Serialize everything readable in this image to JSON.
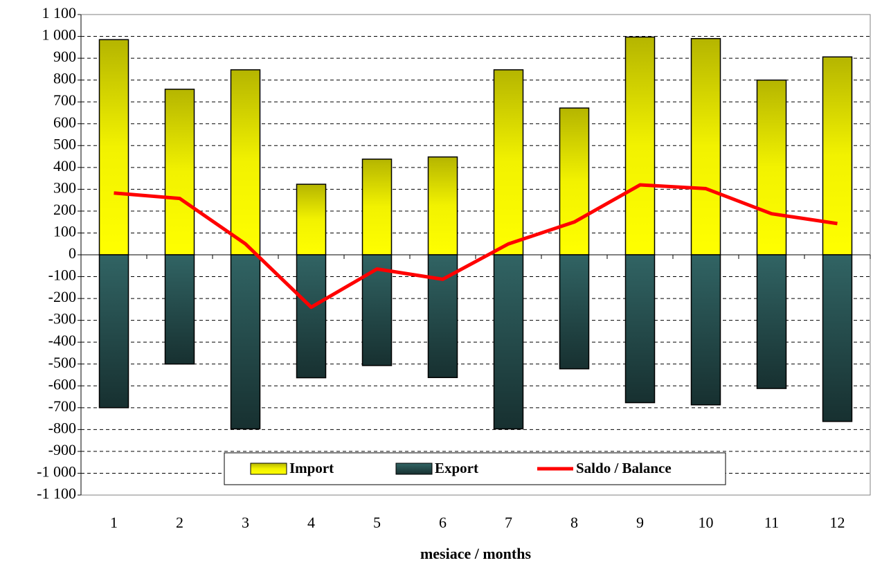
{
  "chart_data": {
    "type": "bar_line",
    "x_label": "mesiace / months",
    "categories": [
      "1",
      "2",
      "3",
      "4",
      "5",
      "6",
      "7",
      "8",
      "9",
      "10",
      "11",
      "12"
    ],
    "series": [
      {
        "name": "Import",
        "type": "bar",
        "color": "#e6e600",
        "values": [
          985,
          758,
          847,
          323,
          438,
          448,
          847,
          672,
          997,
          990,
          800,
          906
        ]
      },
      {
        "name": "Export",
        "type": "bar",
        "color": "#2a5454",
        "values": [
          -700,
          -500,
          -797,
          -563,
          -507,
          -562,
          -797,
          -522,
          -677,
          -687,
          -612,
          -763
        ]
      },
      {
        "name": "Saldo / Balance",
        "type": "line",
        "color": "#ff0000",
        "values": [
          283,
          258,
          50,
          -240,
          -65,
          -112,
          50,
          150,
          320,
          303,
          188,
          143
        ]
      }
    ],
    "ylim": [
      -1100,
      1100
    ],
    "yticks": [
      {
        "value": -1100,
        "label": "-1 100"
      },
      {
        "value": -1000,
        "label": "-1 000"
      },
      -900,
      -800,
      -700,
      -600,
      -500,
      -400,
      -300,
      -200,
      -100,
      0,
      100,
      200,
      300,
      400,
      500,
      600,
      700,
      800,
      900,
      {
        "value": 1000,
        "label": "1 000"
      },
      {
        "value": 1100,
        "label": "1 100"
      }
    ],
    "grid": true,
    "legend": "bottom"
  }
}
